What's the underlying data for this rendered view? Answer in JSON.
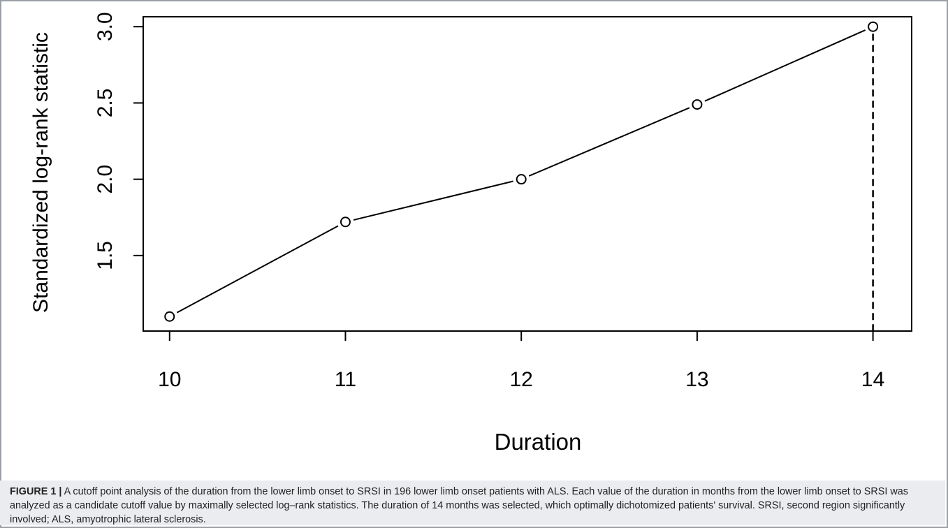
{
  "chart_data": {
    "type": "scatter",
    "title": "",
    "xlabel": "Duration",
    "ylabel": "Standardized log-rank statistic",
    "xlim": [
      9.85,
      14.22
    ],
    "ylim": [
      1.005,
      3.065
    ],
    "x_ticks": [
      "10",
      "11",
      "12",
      "13",
      "14"
    ],
    "y_ticks": [
      "1.5",
      "2.0",
      "2.5",
      "3.0"
    ],
    "x": [
      10,
      11,
      12,
      13,
      14
    ],
    "y": [
      1.1,
      1.72,
      2.0,
      2.49,
      3.0
    ],
    "cutoff": {
      "x": 14,
      "y": 3.0,
      "style": "dashed vertical line"
    },
    "grid": false,
    "legend": "none",
    "colors": {
      "ink": "#000000",
      "caption_bg": "#eaecef"
    }
  },
  "caption": {
    "label": "FIGURE 1 |",
    "text": " A cutoff point analysis of the duration from the lower limb onset to SRSI in 196 lower limb onset patients with ALS. Each value of the duration in months from the lower limb onset to SRSI was analyzed as a candidate cutoff value by maximally selected log–rank statistics. The duration of 14 months was selected, which optimally dichotomized patients' survival. SRSI, second region significantly involved; ALS, amyotrophic lateral sclerosis."
  }
}
